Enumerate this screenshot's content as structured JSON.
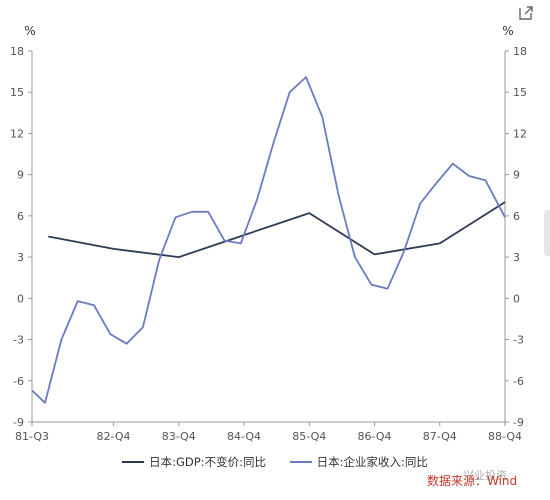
{
  "chart_data": {
    "type": "line",
    "title": "",
    "y_unit_left": "%",
    "y_unit_right": "%",
    "ylim": [
      -9,
      18
    ],
    "yticks": [
      "18",
      "15",
      "12",
      "9",
      "6",
      "3",
      "0",
      "-3",
      "-6",
      "-9"
    ],
    "x_tick_labels": [
      "81-Q3",
      "82-Q4",
      "83-Q4",
      "84-Q4",
      "85-Q4",
      "86-Q4",
      "87-Q4",
      "88-Q4"
    ],
    "x_tick_positions": [
      0,
      5,
      9,
      13,
      17,
      21,
      25,
      29
    ],
    "xlim": [
      0,
      29
    ],
    "grid": false,
    "legend_position": "bottom",
    "series": [
      {
        "name": "日本:GDP:不变价:同比",
        "color": "#2f3b55",
        "x": [
          1,
          5,
          9,
          13,
          17,
          21,
          25,
          29
        ],
        "values": [
          4.5,
          3.6,
          3.0,
          4.6,
          6.2,
          3.2,
          4.0,
          7.0
        ]
      },
      {
        "name": "日本:企业家收入:同比",
        "color": "#6a7bc4",
        "x": [
          0,
          0.8,
          1.8,
          2.8,
          3.8,
          4.8,
          5.8,
          6.8,
          7.8,
          8.8,
          9.8,
          10.8,
          11.8,
          12.8,
          13.8,
          14.8,
          15.8,
          16.8,
          17.8,
          18.8,
          19.8,
          20.8,
          21.8,
          22.8,
          23.8,
          24.8,
          25.8,
          26.8,
          27.8,
          29
        ],
        "values": [
          -6.7,
          -7.6,
          -3.0,
          -0.2,
          -0.5,
          -2.6,
          -3.3,
          -2.1,
          2.8,
          5.9,
          6.3,
          6.3,
          4.2,
          4.0,
          7.2,
          11.3,
          15.0,
          16.1,
          13.2,
          7.5,
          3.0,
          1.0,
          0.7,
          3.4,
          6.9,
          8.4,
          9.8,
          8.9,
          8.6,
          5.9
        ]
      }
    ]
  },
  "source_text": "数据来源：Wind",
  "watermark_text": "兴业投资",
  "expand_icon": "expand-icon"
}
